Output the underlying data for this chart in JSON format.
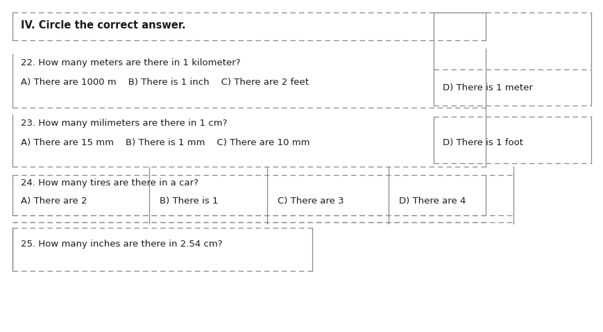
{
  "title": "IV. Circle the correct answer.",
  "q22": "22. How many meters are there in 1 kilometer?",
  "q22_abc": "A) There are 1000 m    B) There is 1 inch    C) There are 2 feet",
  "q22_d": "D) There is 1 meter",
  "q23": "23. How many milimeters are there in 1 cm?",
  "q23_abc": "A) There are 15 mm    B) There is 1 mm    C) There are 10 mm",
  "q23_d": "D) There is 1 foot",
  "q24": "24. How many tires are there in a car?",
  "q24_a": "A) There are 2",
  "q24_b": "B) There is 1",
  "q24_c": "C) There are 3",
  "q24_d": "D) There are 4",
  "q25": "25. How many inches are there in 2.54 cm?",
  "bg_color": "#ffffff",
  "text_color": "#1a1a1a",
  "line_color": "#888888",
  "font_size_title": 10.5,
  "font_size_text": 9.5
}
